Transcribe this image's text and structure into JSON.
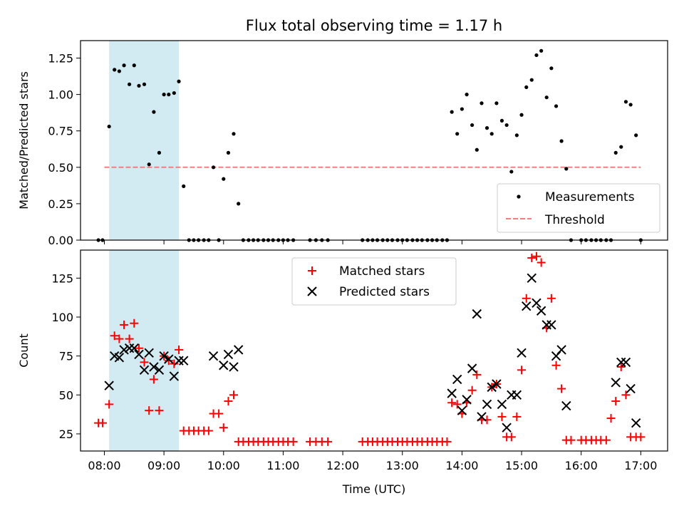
{
  "chart_data": [
    {
      "type": "scatter",
      "title": "Flux total observing time = 1.17 h",
      "xlabel": "",
      "ylabel": "Matched/Predicted stars",
      "xlim": [
        7.6,
        17.45
      ],
      "ylim": [
        0,
        1.37
      ],
      "yticks": [
        0,
        0.25,
        0.5,
        0.75,
        1.0,
        1.25
      ],
      "ytick_labels": [
        "0.00",
        "0.25",
        "0.50",
        "0.75",
        "1.00",
        "1.25"
      ],
      "highlight_span": [
        8.08,
        9.25
      ],
      "highlight_color": "#add8e6",
      "threshold": {
        "name": "Threshold",
        "value": 0.5,
        "x": [
          8.0,
          17.0
        ],
        "color": "#f08080"
      },
      "legend": [
        {
          "label": "Measurements",
          "marker": "dot"
        },
        {
          "label": "Threshold",
          "marker": "dashed-line"
        }
      ],
      "series": [
        {
          "name": "Measurements",
          "color": "#000000",
          "x": [
            7.9,
            7.97,
            8.08,
            8.17,
            8.25,
            8.33,
            8.42,
            8.5,
            8.58,
            8.67,
            8.75,
            8.83,
            8.92,
            9.0,
            9.08,
            9.17,
            9.25,
            9.33,
            9.42,
            9.5,
            9.58,
            9.67,
            9.75,
            9.83,
            9.92,
            10.0,
            10.08,
            10.17,
            10.25,
            10.33,
            10.42,
            10.5,
            10.58,
            10.67,
            10.75,
            10.83,
            10.92,
            11.0,
            11.08,
            11.17,
            11.45,
            11.55,
            11.65,
            11.75,
            12.33,
            12.42,
            12.5,
            12.58,
            12.67,
            12.75,
            12.83,
            12.92,
            13.0,
            13.08,
            13.17,
            13.25,
            13.33,
            13.42,
            13.5,
            13.58,
            13.67,
            13.75,
            13.83,
            13.92,
            14.0,
            14.08,
            14.17,
            14.25,
            14.33,
            14.42,
            14.5,
            14.58,
            14.67,
            14.75,
            14.83,
            14.92,
            15.0,
            15.08,
            15.17,
            15.25,
            15.33,
            15.42,
            15.5,
            15.58,
            15.67,
            15.75,
            15.83,
            16.0,
            16.08,
            16.17,
            16.25,
            16.33,
            16.42,
            16.5,
            16.58,
            16.67,
            16.75,
            16.83,
            16.92,
            17.0
          ],
          "y": [
            0,
            0,
            0.78,
            1.17,
            1.16,
            1.2,
            1.07,
            1.2,
            1.06,
            1.07,
            0.52,
            0.88,
            0.6,
            1.0,
            1.0,
            1.01,
            1.09,
            0.37,
            0,
            0,
            0,
            0,
            0,
            0.5,
            0,
            0.42,
            0.6,
            0.73,
            0.25,
            0,
            0,
            0,
            0,
            0,
            0,
            0,
            0,
            0,
            0,
            0,
            0,
            0,
            0,
            0,
            0,
            0,
            0,
            0,
            0,
            0,
            0,
            0,
            0,
            0,
            0,
            0,
            0,
            0,
            0,
            0,
            0,
            0,
            0.88,
            0.73,
            0.9,
            1.0,
            0.79,
            0.62,
            0.94,
            0.77,
            0.73,
            0.94,
            0.82,
            0.79,
            0.47,
            0.72,
            0.86,
            1.05,
            1.1,
            1.27,
            1.3,
            0.98,
            1.18,
            0.92,
            0.68,
            0.49,
            0,
            0,
            0,
            0,
            0,
            0,
            0,
            0,
            0.6,
            0.64,
            0.95,
            0.93,
            0.72,
            0
          ]
        }
      ]
    },
    {
      "type": "scatter",
      "title": "",
      "xlabel": "Time (UTC)",
      "ylabel": "Count",
      "xlim": [
        7.6,
        17.45
      ],
      "ylim": [
        14,
        143
      ],
      "xticks": [
        8,
        9,
        10,
        11,
        12,
        13,
        14,
        15,
        16,
        17
      ],
      "xtick_labels": [
        "08:00",
        "09:00",
        "10:00",
        "11:00",
        "12:00",
        "13:00",
        "14:00",
        "15:00",
        "16:00",
        "17:00"
      ],
      "yticks": [
        25,
        50,
        75,
        100,
        125
      ],
      "ytick_labels": [
        "25",
        "50",
        "75",
        "100",
        "125"
      ],
      "highlight_span": [
        8.08,
        9.25
      ],
      "legend": [
        {
          "label": "Matched stars",
          "marker": "plus"
        },
        {
          "label": "Predicted stars",
          "marker": "x"
        }
      ],
      "series": [
        {
          "name": "Matched stars",
          "marker": "plus",
          "color": "#ff0000",
          "x": [
            7.9,
            7.97,
            8.08,
            8.17,
            8.25,
            8.33,
            8.42,
            8.5,
            8.58,
            8.67,
            8.75,
            8.83,
            8.92,
            9.0,
            9.08,
            9.17,
            9.25,
            9.33,
            9.42,
            9.5,
            9.58,
            9.67,
            9.75,
            9.83,
            9.92,
            10.0,
            10.08,
            10.17,
            10.25,
            10.33,
            10.42,
            10.5,
            10.58,
            10.67,
            10.75,
            10.83,
            10.92,
            11.0,
            11.08,
            11.17,
            11.45,
            11.55,
            11.65,
            11.75,
            12.33,
            12.42,
            12.5,
            12.58,
            12.67,
            12.75,
            12.83,
            12.92,
            13.0,
            13.08,
            13.17,
            13.25,
            13.33,
            13.42,
            13.5,
            13.58,
            13.67,
            13.75,
            13.83,
            13.92,
            14.0,
            14.08,
            14.17,
            14.25,
            14.33,
            14.42,
            14.5,
            14.58,
            14.67,
            14.75,
            14.83,
            14.92,
            15.0,
            15.08,
            15.17,
            15.25,
            15.33,
            15.42,
            15.5,
            15.58,
            15.67,
            15.75,
            15.83,
            16.0,
            16.08,
            16.17,
            16.25,
            16.33,
            16.42,
            16.5,
            16.58,
            16.67,
            16.75,
            16.83,
            16.92,
            17.0
          ],
          "y": [
            32,
            32,
            44,
            88,
            86,
            95,
            86,
            96,
            80,
            71,
            40,
            60,
            40,
            75,
            72,
            70,
            79,
            27,
            27,
            27,
            27,
            27,
            27,
            38,
            38,
            29,
            46,
            50,
            20,
            20,
            20,
            20,
            20,
            20,
            20,
            20,
            20,
            20,
            20,
            20,
            20,
            20,
            20,
            20,
            20,
            20,
            20,
            20,
            20,
            20,
            20,
            20,
            20,
            20,
            20,
            20,
            20,
            20,
            20,
            20,
            20,
            20,
            45,
            44,
            38,
            45,
            53,
            63,
            34,
            34,
            55,
            57,
            36,
            23,
            23,
            36,
            66,
            112,
            138,
            139,
            135,
            93,
            112,
            69,
            54,
            21,
            21,
            21,
            21,
            21,
            21,
            21,
            21,
            35,
            46,
            68,
            50,
            23,
            23,
            23
          ]
        },
        {
          "name": "Predicted stars",
          "marker": "x",
          "color": "#000000",
          "x": [
            8.08,
            8.17,
            8.25,
            8.33,
            8.42,
            8.5,
            8.58,
            8.67,
            8.75,
            8.83,
            8.92,
            9.0,
            9.08,
            9.17,
            9.25,
            9.33,
            9.83,
            10.0,
            10.08,
            10.17,
            10.25,
            13.83,
            13.92,
            14.0,
            14.08,
            14.17,
            14.25,
            14.33,
            14.42,
            14.5,
            14.58,
            14.67,
            14.75,
            14.83,
            14.92,
            15.0,
            15.08,
            15.17,
            15.25,
            15.33,
            15.42,
            15.5,
            15.58,
            15.67,
            15.75,
            16.58,
            16.67,
            16.75,
            16.83,
            16.92
          ],
          "y": [
            56,
            75,
            74,
            79,
            80,
            80,
            76,
            66,
            77,
            68,
            66,
            75,
            73,
            62,
            72,
            72,
            75,
            69,
            76,
            68,
            79,
            51,
            60,
            40,
            47,
            67,
            102,
            36,
            44,
            55,
            57,
            44,
            29,
            50,
            50,
            77,
            107,
            125,
            109,
            104,
            95,
            95,
            75,
            79,
            43,
            58,
            71,
            71,
            54,
            32
          ]
        }
      ]
    }
  ]
}
